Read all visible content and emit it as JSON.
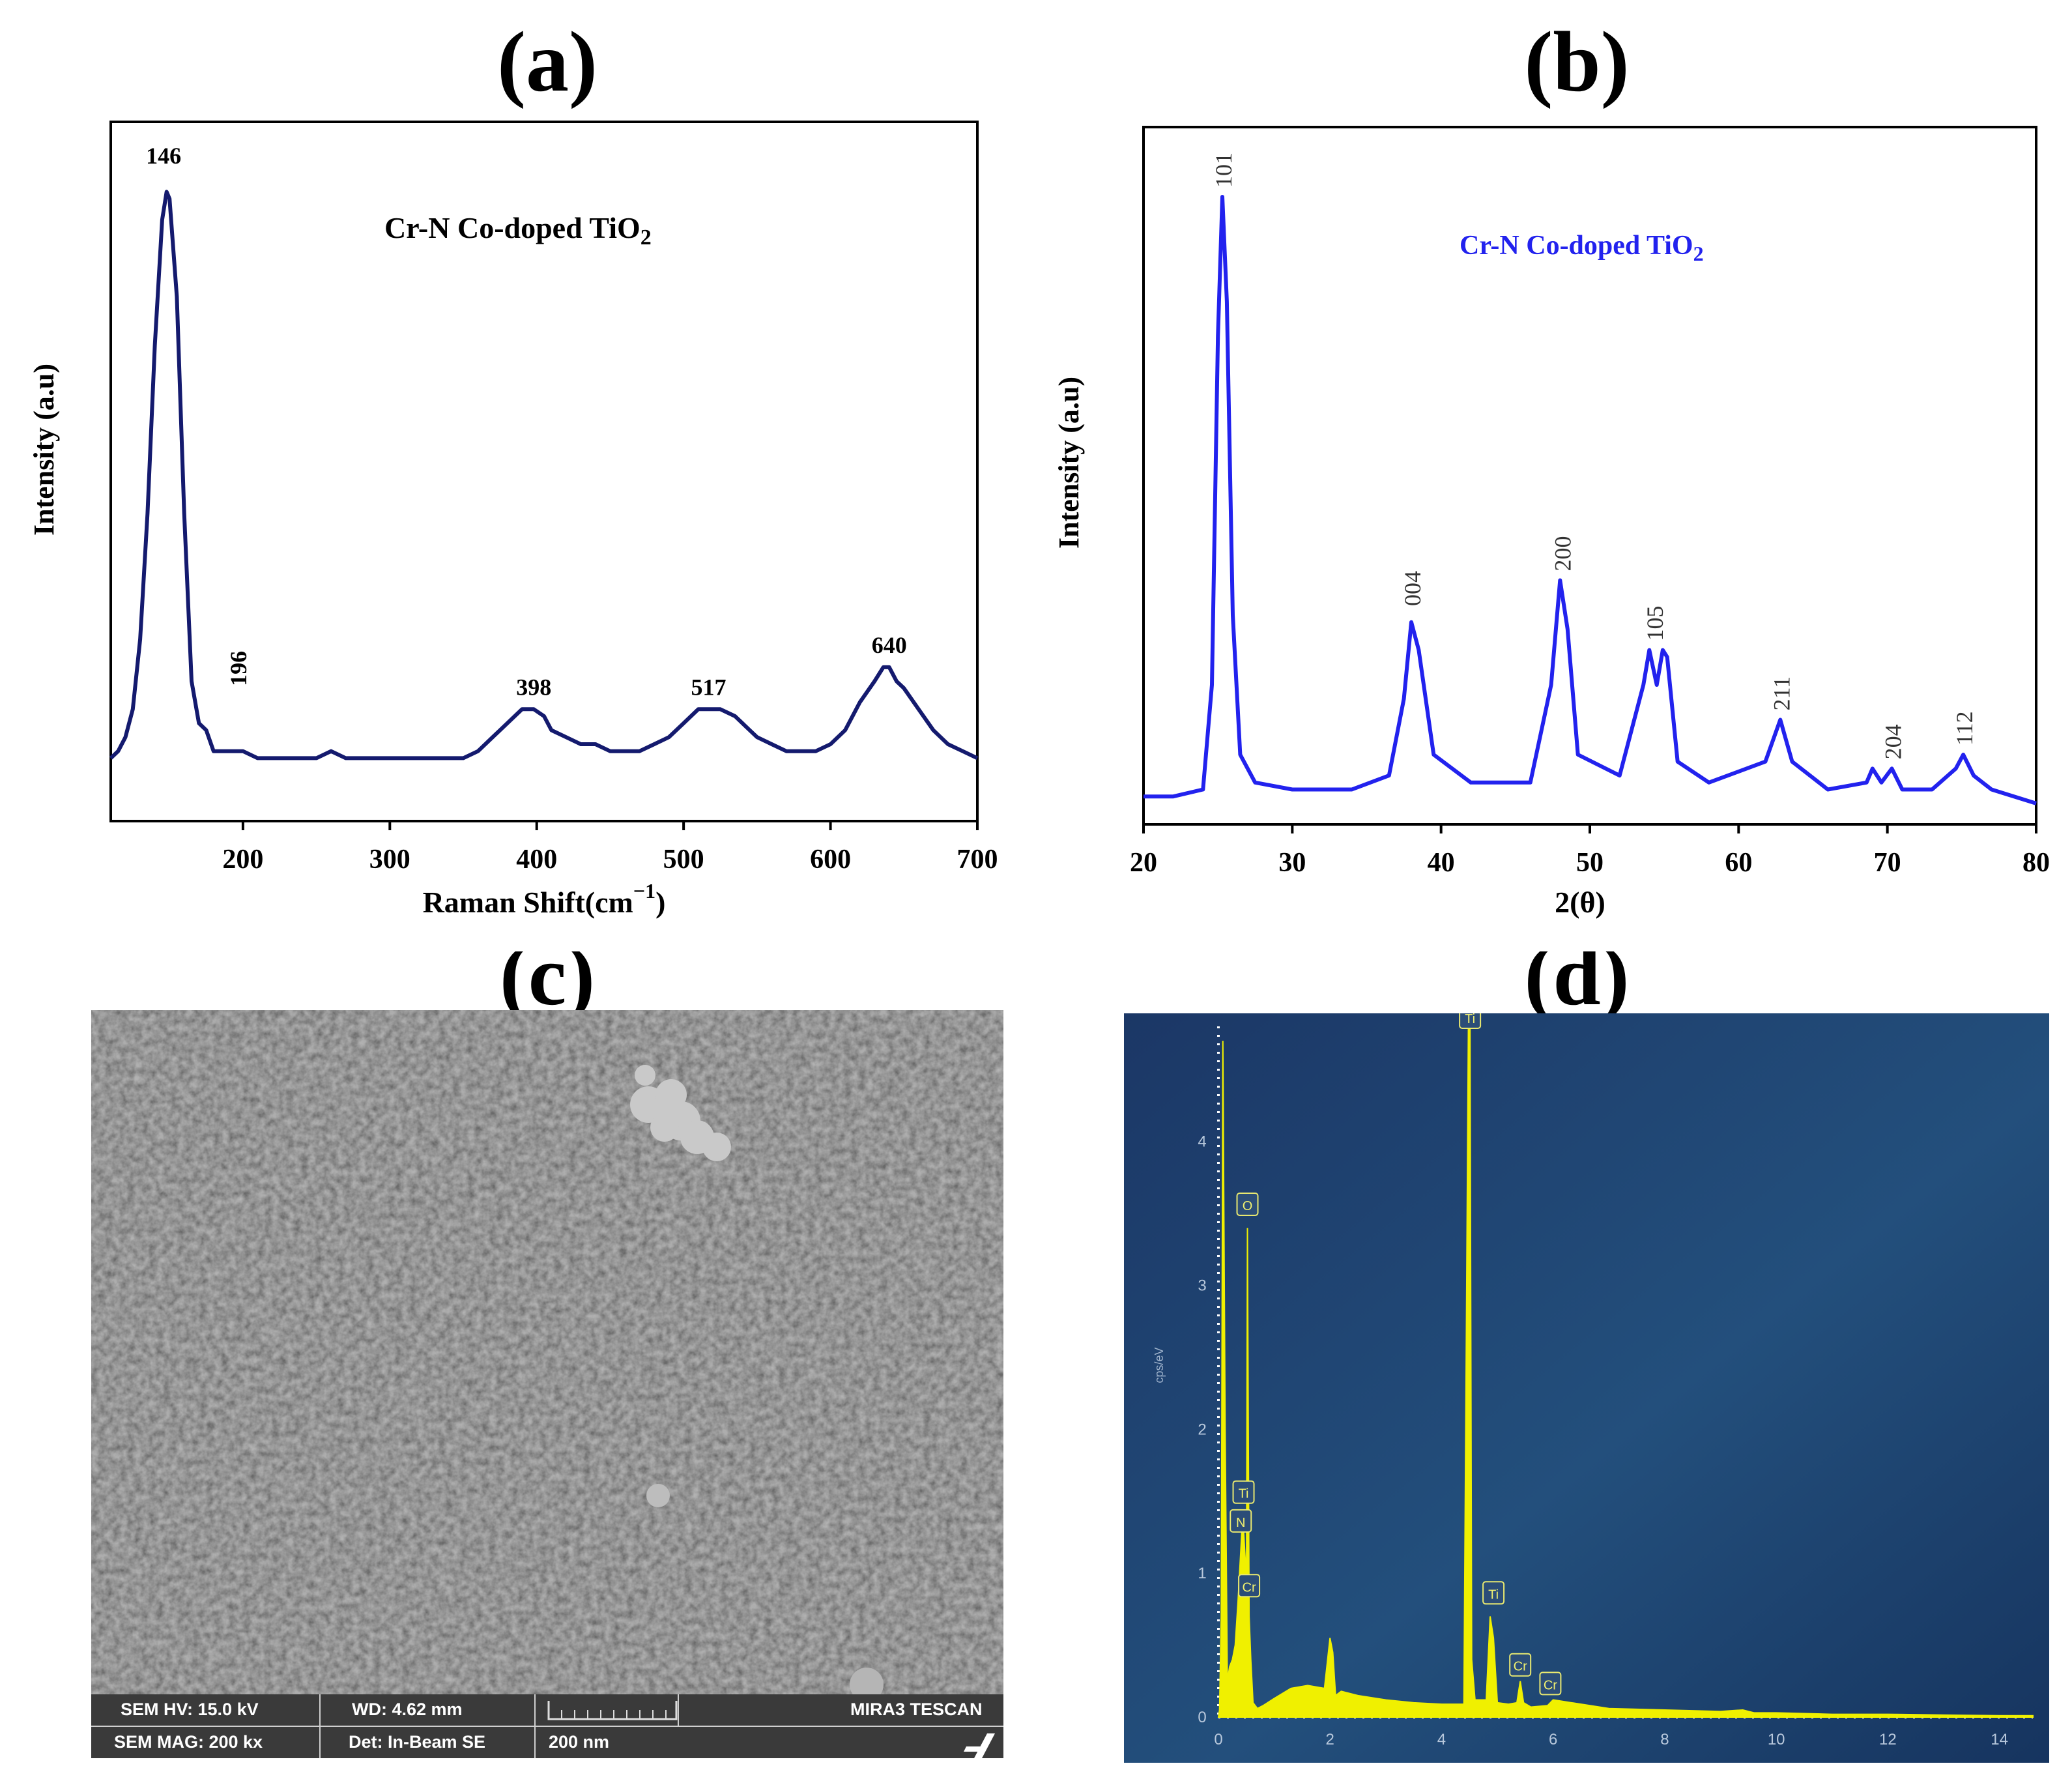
{
  "panels": {
    "a": "(a)",
    "b": "(b)",
    "c": "(c)",
    "d": "(d)"
  },
  "chart_data": [
    {
      "id": "a",
      "type": "line",
      "title": "Cr-N Co-doped TiO",
      "title_sub": "2",
      "xlabel": "Raman Shift(cm",
      "xlabel_sup": "−1",
      "xlabel_end": ")",
      "ylabel": "Intensity (a.u)",
      "xlim": [
        110,
        700
      ],
      "ylim": [
        0,
        100
      ],
      "xticks": [
        200,
        300,
        400,
        500,
        600,
        700
      ],
      "peaks": [
        {
          "x": 146,
          "y": 92,
          "label": "146",
          "rotated": false
        },
        {
          "x": 196,
          "y": 18,
          "label": "196",
          "rotated": true
        },
        {
          "x": 398,
          "y": 16,
          "label": "398",
          "rotated": false
        },
        {
          "x": 517,
          "y": 16,
          "label": "517",
          "rotated": false
        },
        {
          "x": 640,
          "y": 22,
          "label": "640",
          "rotated": false
        }
      ],
      "series": [
        {
          "name": "Cr-N Co-doped TiO2",
          "color": "#141a6e",
          "x": [
            110,
            115,
            120,
            125,
            130,
            135,
            140,
            145,
            148,
            150,
            155,
            160,
            165,
            170,
            175,
            180,
            190,
            200,
            210,
            220,
            230,
            240,
            250,
            260,
            270,
            280,
            290,
            300,
            310,
            320,
            330,
            340,
            350,
            360,
            370,
            380,
            390,
            398,
            405,
            410,
            420,
            430,
            440,
            450,
            460,
            470,
            480,
            490,
            500,
            510,
            517,
            525,
            535,
            545,
            550,
            560,
            570,
            580,
            590,
            600,
            610,
            620,
            630,
            636,
            640,
            645,
            650,
            660,
            670,
            680,
            690,
            700
          ],
          "y": [
            9,
            10,
            12,
            16,
            26,
            44,
            68,
            86,
            90,
            89,
            75,
            44,
            20,
            14,
            13,
            10,
            10,
            10,
            9,
            9,
            9,
            9,
            9,
            10,
            9,
            9,
            9,
            9,
            9,
            9,
            9,
            9,
            9,
            10,
            12,
            14,
            16,
            16,
            15,
            13,
            12,
            11,
            11,
            10,
            10,
            10,
            11,
            12,
            14,
            16,
            16,
            16,
            15,
            13,
            12,
            11,
            10,
            10,
            10,
            11,
            13,
            17,
            20,
            22,
            22,
            20,
            19,
            16,
            13,
            11,
            10,
            9
          ]
        }
      ]
    },
    {
      "id": "b",
      "type": "line",
      "title": "Cr-N Co-doped TiO",
      "title_sub": "2",
      "xlabel": "2(θ)",
      "ylabel": "Intensity (a.u)",
      "xlim": [
        20,
        80
      ],
      "ylim": [
        0,
        100
      ],
      "xticks": [
        20,
        30,
        40,
        50,
        60,
        70,
        80
      ],
      "peaks": [
        {
          "x": 25.3,
          "y": 90,
          "label": "101"
        },
        {
          "x": 38.0,
          "y": 30,
          "label": "004"
        },
        {
          "x": 48.1,
          "y": 35,
          "label": "200"
        },
        {
          "x": 54.3,
          "y": 25,
          "label": "105"
        },
        {
          "x": 62.8,
          "y": 15,
          "label": "211"
        },
        {
          "x": 70.3,
          "y": 8,
          "label": "204"
        },
        {
          "x": 75.1,
          "y": 10,
          "label": "112"
        }
      ],
      "series": [
        {
          "name": "Cr-N Co-doped TiO2",
          "color": "#2222ee",
          "x": [
            20,
            22,
            24,
            24.6,
            25.0,
            25.3,
            25.6,
            26.0,
            26.5,
            27.5,
            30,
            34,
            36.5,
            37.5,
            38.0,
            38.5,
            39.5,
            42,
            46,
            47.4,
            48.0,
            48.5,
            49.2,
            52,
            53.6,
            54.0,
            54.5,
            54.9,
            55.2,
            55.9,
            58,
            61.8,
            62.8,
            63.6,
            66,
            68.6,
            69.0,
            69.6,
            70.3,
            71.0,
            73,
            74.6,
            75.1,
            75.8,
            77,
            80
          ],
          "y": [
            4,
            4,
            5,
            20,
            70,
            90,
            75,
            30,
            10,
            6,
            5,
            5,
            7,
            18,
            29,
            25,
            10,
            6,
            6,
            20,
            35,
            28,
            10,
            7,
            20,
            25,
            20,
            25,
            24,
            9,
            6,
            9,
            15,
            9,
            5,
            6,
            8,
            6,
            8,
            5,
            5,
            8,
            10,
            7,
            5,
            3
          ]
        }
      ]
    },
    {
      "id": "d",
      "type": "area",
      "ylabel": "cps/eV",
      "xlim": [
        0,
        14.6
      ],
      "ylim": [
        0,
        4.8
      ],
      "xticks": [
        0,
        2,
        4,
        6,
        8,
        10,
        12,
        14
      ],
      "yticks": [
        0,
        1,
        2,
        3,
        4
      ],
      "series": [
        {
          "name": "EDS spectrum",
          "color": "#f0f000",
          "x": [
            0,
            0.02,
            0.05,
            0.08,
            0.12,
            0.16,
            0.2,
            0.25,
            0.3,
            0.35,
            0.42,
            0.45,
            0.48,
            0.5,
            0.52,
            0.55,
            0.58,
            0.6,
            0.62,
            0.7,
            0.8,
            1.0,
            1.3,
            1.6,
            1.9,
            2.0,
            2.05,
            2.1,
            2.2,
            2.5,
            3.0,
            3.5,
            4.0,
            4.4,
            4.48,
            4.51,
            4.54,
            4.6,
            4.8,
            4.87,
            4.93,
            5.0,
            5.2,
            5.35,
            5.41,
            5.47,
            5.6,
            5.9,
            6.0,
            7,
            8,
            9,
            9.4,
            9.6,
            10,
            11,
            12,
            13,
            14,
            14.6
          ],
          "y": [
            0,
            0.05,
            0.7,
            4.7,
            2.0,
            0.25,
            0.35,
            0.4,
            0.5,
            0.8,
            1.3,
            1.3,
            1.1,
            0.6,
            3.4,
            0.7,
            0.4,
            0.25,
            0.1,
            0.06,
            0.08,
            0.13,
            0.2,
            0.22,
            0.2,
            0.55,
            0.45,
            0.15,
            0.18,
            0.15,
            0.12,
            0.1,
            0.09,
            0.09,
            4.8,
            4.8,
            0.4,
            0.12,
            0.12,
            0.7,
            0.55,
            0.1,
            0.09,
            0.1,
            0.25,
            0.1,
            0.07,
            0.08,
            0.12,
            0.06,
            0.05,
            0.04,
            0.05,
            0.03,
            0.03,
            0.02,
            0.02,
            0.015,
            0.01,
            0.01
          ]
        }
      ],
      "element_labels": [
        {
          "x": 0.52,
          "y": 3.55,
          "label": "O"
        },
        {
          "x": 0.45,
          "y": 1.55,
          "label": "Ti"
        },
        {
          "x": 0.4,
          "y": 1.35,
          "label": "N"
        },
        {
          "x": 0.55,
          "y": 0.9,
          "label": "Cr"
        },
        {
          "x": 4.51,
          "y": 4.85,
          "label": "Ti"
        },
        {
          "x": 4.93,
          "y": 0.85,
          "label": "Ti"
        },
        {
          "x": 5.41,
          "y": 0.35,
          "label": "Cr"
        },
        {
          "x": 5.95,
          "y": 0.22,
          "label": "Cr"
        }
      ]
    }
  ],
  "sem": {
    "hv": "SEM HV: 15.0 kV",
    "wd": "WD: 4.62 mm",
    "brand": "MIRA3 TESCAN",
    "mag": "SEM MAG: 200 kx",
    "det": "Det: In-Beam SE",
    "scale": "200 nm"
  }
}
